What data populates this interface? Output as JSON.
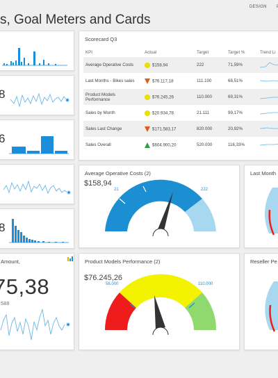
{
  "page": {
    "title": "s, Goal Meters and Cards"
  },
  "topmenu": {
    "design": "DESIGN",
    "partial": "P"
  },
  "kpi_cards": [
    {
      "value": ""
    },
    {
      "value": "8"
    },
    {
      "value": "6"
    },
    {
      "value": ""
    },
    {
      "value": "8"
    }
  ],
  "scorecard": {
    "title": "Scorecard Q3",
    "headers": [
      "KPI",
      "Actual",
      "Target",
      "Target %",
      "Trend Li"
    ],
    "rows": [
      {
        "kpi": "Average Operative Costs",
        "indicator": "yellow-circle",
        "actual": "$158,94",
        "target": "222",
        "pct": "71,59%"
      },
      {
        "kpi": "Last Months - Bikes sales",
        "indicator": "orange-down-triangle",
        "actual": "$76.117,18",
        "target": "111.100",
        "pct": "68,51%"
      },
      {
        "kpi": "Product Models Performance",
        "indicator": "yellow-circle",
        "actual": "$76.245,26",
        "target": "110.000",
        "pct": "69,31%"
      },
      {
        "kpi": "Sales by Month",
        "indicator": "yellow-circle",
        "actual": "$20.934,78",
        "target": "21.111",
        "pct": "99,17%"
      },
      {
        "kpi": "Sales Last Change",
        "indicator": "orange-down-triangle",
        "actual": "$171.583,17",
        "target": "820.000",
        "pct": "20,92%"
      },
      {
        "kpi": "Sales Overall",
        "indicator": "green-up-triangle",
        "actual": "$604.900,20",
        "target": "520.000",
        "pct": "116,33%"
      }
    ]
  },
  "gauge_aoc": {
    "title": "Average Operative Costs (2)",
    "value": "$158,94",
    "min_label": "21",
    "target_label": "222",
    "needle_fraction": 0.72
  },
  "gauge_lm": {
    "title": "Last Month"
  },
  "gauge_pmp": {
    "title": "Product Models Performance (2)",
    "value": "$76.245,26",
    "min_label": "56.000",
    "target_label": "110.000",
    "needle_fraction": 0.4
  },
  "gauge_rp": {
    "title": "Reseller Pe"
  },
  "amount_card": {
    "title": "Amount,",
    "big_value": "75,38",
    "sub_value": "588"
  },
  "colors": {
    "blue_dark": "#1b8fd1",
    "blue_light": "#a8d8f0",
    "red": "#ee1c1c",
    "yellow": "#f3f300",
    "green": "#8fd96e",
    "accent": "#1a8ddb"
  },
  "icons": {
    "amount_card_icon": "bar-chart-icon"
  }
}
